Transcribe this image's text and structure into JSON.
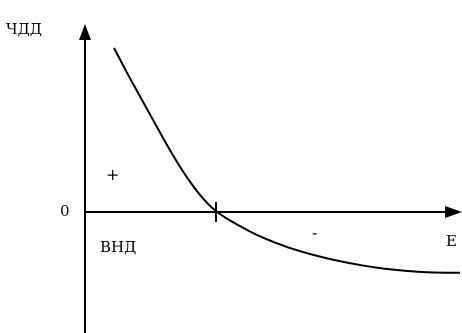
{
  "chart_data": {
    "type": "line",
    "title": "",
    "ylabel": "ЧДД",
    "xlabel": "E",
    "zero_label": "0",
    "crossing_label": "ВНД",
    "plus_label": "+",
    "minus_label": "-",
    "grid": false,
    "legend": "none",
    "x_unit": "relative",
    "irr_x": 0.28,
    "series": [
      {
        "values_note": "",
        "x": [
          0.0,
          0.04,
          0.08,
          0.12,
          0.16,
          0.2,
          0.24,
          0.28,
          0.34,
          0.4,
          0.48,
          0.56,
          0.64,
          0.72,
          0.8,
          0.88,
          0.95
        ],
        "y": [
          1.0,
          0.83,
          0.67,
          0.51,
          0.35,
          0.21,
          0.09,
          0.0,
          -0.08,
          -0.15,
          -0.22,
          -0.27,
          -0.31,
          -0.34,
          -0.36,
          -0.37,
          -0.37
        ]
      }
    ]
  },
  "colors": {
    "ink": "#000000",
    "background": "#ffffff"
  }
}
